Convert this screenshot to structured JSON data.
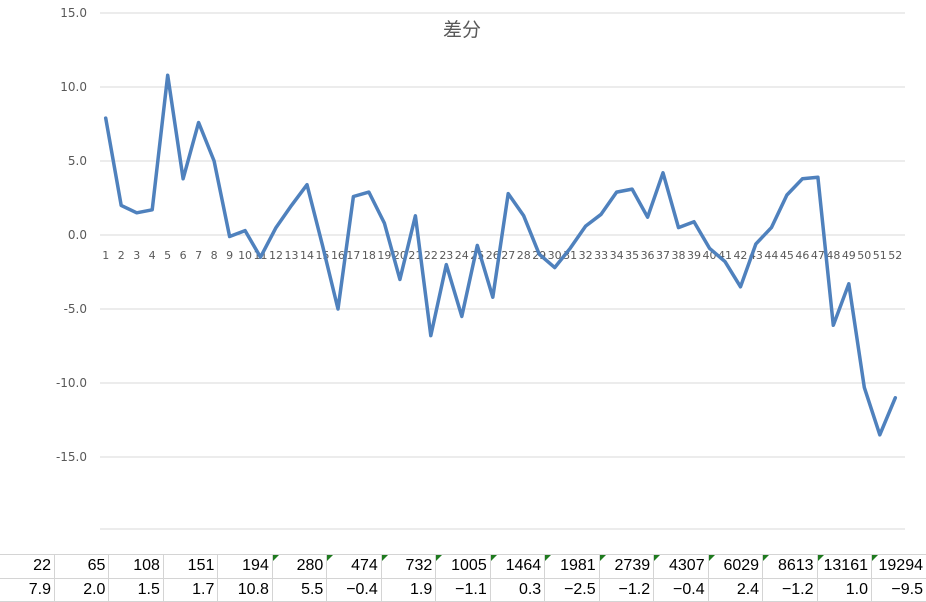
{
  "chart_data": {
    "type": "line",
    "title": "差分",
    "xlabel": "",
    "ylabel": "",
    "ylim": [
      -20,
      15
    ],
    "y_ticks": [
      "15.0",
      "10.0",
      "5.0",
      "0.0",
      "-5.0",
      "-10.0",
      "-15.0"
    ],
    "grid": true,
    "legend": "none",
    "line_color": "#4f81bd",
    "categories": [
      "1",
      "2",
      "3",
      "4",
      "5",
      "6",
      "7",
      "8",
      "9",
      "10",
      "11",
      "12",
      "13",
      "14",
      "15",
      "16",
      "17",
      "18",
      "19",
      "20",
      "21",
      "22",
      "23",
      "24",
      "25",
      "26",
      "27",
      "28",
      "29",
      "30",
      "31",
      "32",
      "33",
      "34",
      "35",
      "36",
      "37",
      "38",
      "39",
      "40",
      "41",
      "42",
      "43",
      "44",
      "45",
      "46",
      "47",
      "48",
      "49",
      "50",
      "51",
      "52"
    ],
    "values": [
      7.9,
      2.0,
      1.5,
      1.7,
      10.8,
      3.8,
      7.6,
      5.0,
      -0.1,
      0.3,
      -1.5,
      0.5,
      2.0,
      3.4,
      -0.7,
      -5.0,
      2.6,
      2.9,
      0.8,
      -3.0,
      1.3,
      -6.8,
      -2.0,
      -5.5,
      -0.7,
      -4.2,
      2.8,
      1.3,
      -1.3,
      -2.2,
      -0.9,
      0.6,
      1.4,
      2.9,
      3.1,
      1.2,
      4.2,
      0.5,
      0.9,
      -0.9,
      -1.8,
      -3.5,
      -0.6,
      0.5,
      2.7,
      3.8,
      3.9,
      -6.1,
      -3.3,
      -10.3,
      -13.5,
      -11.0
    ]
  },
  "sheet": {
    "rows": [
      [
        "22",
        "65",
        "108",
        "151",
        "194",
        "280",
        "474",
        "732",
        "1005",
        "1464",
        "1981",
        "2739",
        "4307",
        "6029",
        "8613",
        "13161",
        "19294"
      ],
      [
        "7.9",
        "2.0",
        "1.5",
        "1.7",
        "10.8",
        "5.5",
        "−0.4",
        "1.9",
        "−1.1",
        "0.3",
        "−2.5",
        "−1.2",
        "−0.4",
        "2.4",
        "−1.2",
        "1.0",
        "−9.5"
      ]
    ],
    "flag_color": "#1e7a1e"
  }
}
